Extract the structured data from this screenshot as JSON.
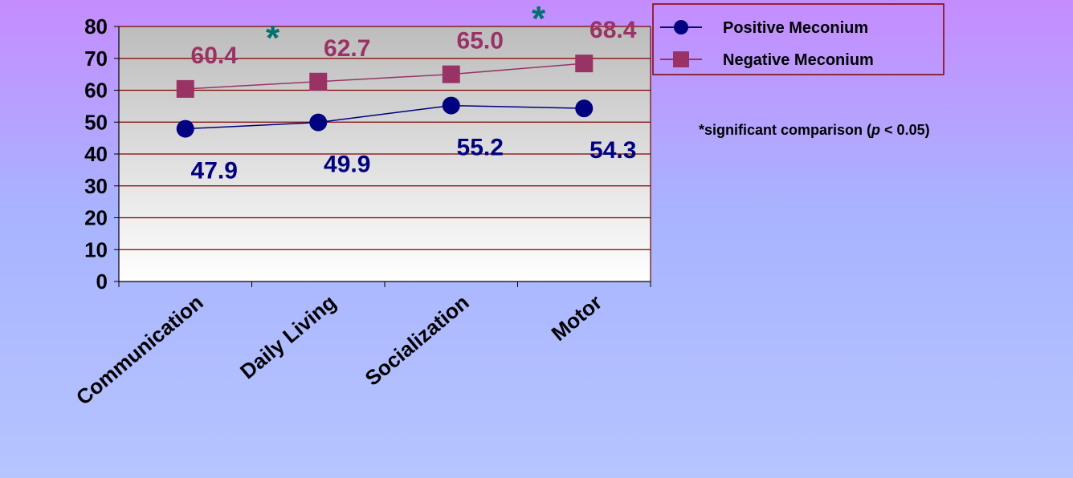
{
  "chart_data": {
    "type": "line",
    "categories": [
      "Communication",
      "Daily Living",
      "Socialization",
      "Motor"
    ],
    "series": [
      {
        "name": "Positive Meconium",
        "values": [
          47.9,
          49.9,
          55.2,
          54.3
        ],
        "labels": [
          "47.9",
          "49.9",
          "55.2",
          "54.3"
        ],
        "color": "#000080",
        "marker": "circle"
      },
      {
        "name": "Negative Meconium",
        "values": [
          60.4,
          62.7,
          65.0,
          68.4
        ],
        "labels": [
          "60.4",
          "62.7",
          "65.0",
          "68.4"
        ],
        "color": "#993366",
        "marker": "square"
      }
    ],
    "yticks": [
      "0",
      "10",
      "20",
      "30",
      "40",
      "50",
      "60",
      "70",
      "80"
    ],
    "ylim": [
      0,
      80
    ],
    "grid": true,
    "legend": "top-right",
    "significance_marks": [
      {
        "after_category": "Communication",
        "symbol": "*"
      },
      {
        "after_category": "Socialization",
        "symbol": "*"
      }
    ],
    "annotation": {
      "prefix": "*significant comparison (",
      "italic": "p",
      "suffix": " < 0.05)"
    }
  },
  "colors": {
    "positive": "#000080",
    "negative": "#993366",
    "star": "#007070",
    "grid": "#800000"
  }
}
